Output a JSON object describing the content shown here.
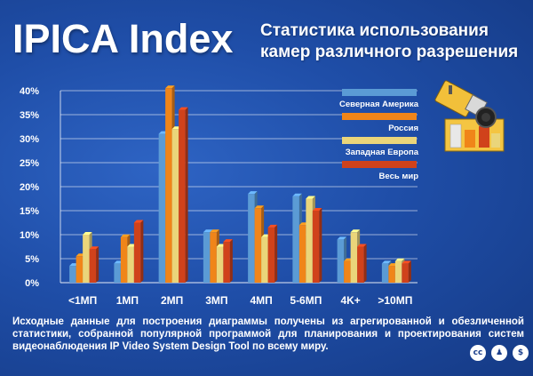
{
  "brand": "IPICA Index",
  "title_line1": "Статистика использования",
  "title_line2": "камер различного разрешения",
  "caption": "Исходные данные для построения диаграммы получены из агрегированной и обезличенной статистики, собранной популярной программой для планирования и проектирования систем видеонаблюдения IP Video System Design Tool по всему миру.",
  "icons": {
    "license": "cc",
    "attribution": "person-icon",
    "noncommercial": "no-dollar-icon"
  },
  "colors": {
    "background": "#1f4ea8",
    "series": [
      "#5b9bd5",
      "#f08519",
      "#ead57a",
      "#d0421b"
    ]
  },
  "chart_data": {
    "type": "bar",
    "title": "Статистика использования камер различного разрешения",
    "categories": [
      "<1МП",
      "1МП",
      "2МП",
      "3МП",
      "4МП",
      "5-6МП",
      "4K+",
      ">10МП"
    ],
    "ylim": [
      0,
      40
    ],
    "yticks": [
      "0%",
      "5%",
      "10%",
      "15%",
      "20%",
      "25%",
      "30%",
      "35%",
      "40%"
    ],
    "grid": true,
    "legend_position": "top-right",
    "series": [
      {
        "name": "Северная Америка",
        "values": [
          3.5,
          4,
          31,
          10.5,
          18.5,
          18,
          9,
          4
        ]
      },
      {
        "name": "Россия",
        "values": [
          5.5,
          9.5,
          40.5,
          10.5,
          15.5,
          12,
          4.5,
          3.5
        ]
      },
      {
        "name": "Западная Европа",
        "values": [
          10,
          7.5,
          32,
          7.5,
          9.5,
          17.5,
          10.5,
          4.5
        ]
      },
      {
        "name": "Весь мир",
        "values": [
          7,
          12.5,
          36,
          8.5,
          11.5,
          15,
          7.5,
          4
        ]
      }
    ]
  }
}
